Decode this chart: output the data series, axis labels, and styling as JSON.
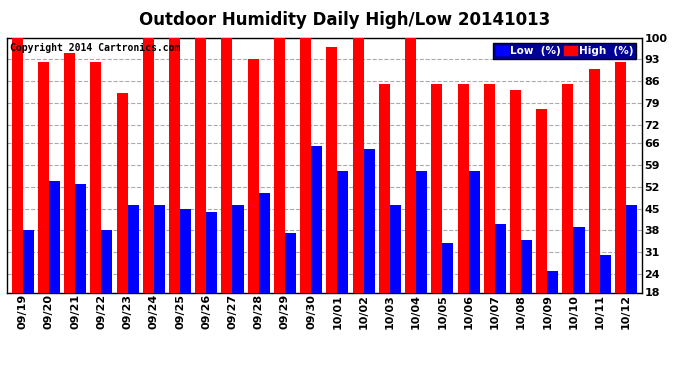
{
  "title": "Outdoor Humidity Daily High/Low 20141013",
  "copyright": "Copyright 2014 Cartronics.com",
  "legend_low": "Low  (%)",
  "legend_high": "High  (%)",
  "dates": [
    "09/19",
    "09/20",
    "09/21",
    "09/22",
    "09/23",
    "09/24",
    "09/25",
    "09/26",
    "09/27",
    "09/28",
    "09/29",
    "09/30",
    "10/01",
    "10/02",
    "10/03",
    "10/04",
    "10/05",
    "10/06",
    "10/07",
    "10/08",
    "10/09",
    "10/10",
    "10/11",
    "10/12"
  ],
  "high": [
    100,
    92,
    95,
    92,
    82,
    100,
    100,
    100,
    100,
    93,
    100,
    100,
    97,
    100,
    85,
    100,
    85,
    85,
    85,
    83,
    77,
    85,
    90,
    92
  ],
  "low": [
    38,
    54,
    53,
    38,
    46,
    46,
    45,
    44,
    46,
    50,
    37,
    65,
    57,
    64,
    46,
    57,
    34,
    57,
    40,
    35,
    25,
    39,
    30,
    46
  ],
  "bar_color_high": "#ff0000",
  "bar_color_low": "#0000ff",
  "bg_color": "#ffffff",
  "ylim_min": 18,
  "ylim_max": 100,
  "yticks": [
    18,
    24,
    31,
    38,
    45,
    52,
    59,
    66,
    72,
    79,
    86,
    93,
    100
  ],
  "grid_color": "#aaaaaa",
  "title_fontsize": 12,
  "copyright_fontsize": 7,
  "tick_fontsize": 8,
  "bar_width": 0.42,
  "legend_bg": "#000099",
  "legend_text_color": "#ffffff"
}
